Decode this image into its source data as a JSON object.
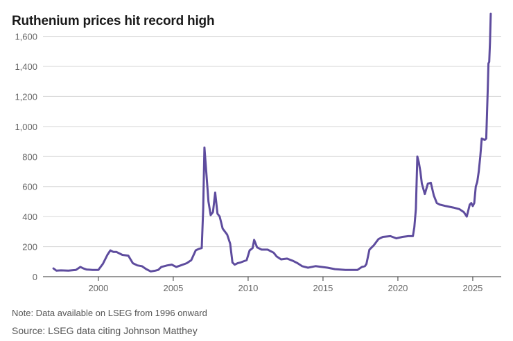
{
  "title": "Ruthenium prices hit record high",
  "note": "Note: Data available on LSEG from 1996 onward",
  "source": "Source: LSEG data citing Johnson Matthey",
  "line_color": "#5e4c9e",
  "chart_data": {
    "type": "line",
    "title": "Ruthenium prices hit record high",
    "xlabel": "",
    "ylabel": "",
    "xlim": [
      1996.3,
      2026.9
    ],
    "ylim": [
      0,
      1750
    ],
    "grid": true,
    "x_ticks": [
      2000,
      2005,
      2010,
      2015,
      2020,
      2025
    ],
    "x_tick_labels": [
      "2000",
      "2005",
      "2010",
      "2015",
      "2020",
      "2025"
    ],
    "y_ticks": [
      0,
      200,
      400,
      600,
      800,
      1000,
      1200,
      1400,
      1600
    ],
    "y_tick_labels": [
      "0",
      "200",
      "400",
      "600",
      "800",
      "1,000",
      "1,200",
      "1,400",
      "1,600"
    ],
    "series": [
      {
        "name": "Ruthenium price",
        "x": [
          1997.0,
          1997.2,
          1997.5,
          1998.0,
          1998.5,
          1998.8,
          1999.0,
          1999.2,
          1999.6,
          2000.0,
          2000.3,
          2000.6,
          2000.8,
          2001.0,
          2001.2,
          2001.6,
          2002.0,
          2002.3,
          2002.6,
          2002.9,
          2003.2,
          2003.5,
          2003.8,
          2004.0,
          2004.2,
          2004.6,
          2004.9,
          2005.2,
          2005.5,
          2005.9,
          2006.2,
          2006.5,
          2006.7,
          2006.9,
          2007.0,
          2007.08,
          2007.2,
          2007.35,
          2007.5,
          2007.65,
          2007.8,
          2007.95,
          2008.1,
          2008.3,
          2008.6,
          2008.8,
          2008.95,
          2009.1,
          2009.3,
          2009.5,
          2009.9,
          2010.1,
          2010.3,
          2010.4,
          2010.6,
          2010.9,
          2011.3,
          2011.7,
          2011.9,
          2012.2,
          2012.6,
          2013.0,
          2013.3,
          2013.6,
          2014.0,
          2014.5,
          2014.9,
          2015.3,
          2015.8,
          2016.5,
          2017.0,
          2017.3,
          2017.6,
          2017.8,
          2017.9,
          2018.1,
          2018.4,
          2018.7,
          2019.0,
          2019.5,
          2019.9,
          2020.3,
          2020.7,
          2021.0,
          2021.1,
          2021.2,
          2021.3,
          2021.4,
          2021.5,
          2021.6,
          2021.8,
          2022.0,
          2022.2,
          2022.4,
          2022.6,
          2022.8,
          2023.2,
          2023.7,
          2024.1,
          2024.4,
          2024.6,
          2024.8,
          2024.9,
          2025.0,
          2025.1,
          2025.2,
          2025.3,
          2025.4,
          2025.5,
          2025.6,
          2025.8,
          2025.9,
          2026.0,
          2026.05,
          2026.1,
          2026.15,
          2026.2
        ],
        "values": [
          55,
          40,
          42,
          40,
          45,
          65,
          55,
          48,
          45,
          45,
          85,
          145,
          175,
          165,
          165,
          145,
          140,
          90,
          75,
          70,
          50,
          35,
          40,
          45,
          65,
          75,
          80,
          65,
          75,
          90,
          110,
          175,
          185,
          190,
          450,
          860,
          700,
          500,
          410,
          430,
          560,
          420,
          400,
          320,
          280,
          220,
          95,
          80,
          90,
          95,
          110,
          175,
          190,
          245,
          195,
          180,
          180,
          160,
          135,
          115,
          120,
          105,
          90,
          70,
          60,
          70,
          65,
          60,
          50,
          45,
          45,
          45,
          65,
          70,
          85,
          180,
          210,
          250,
          265,
          270,
          255,
          265,
          270,
          270,
          330,
          450,
          800,
          760,
          700,
          620,
          550,
          620,
          625,
          540,
          490,
          480,
          470,
          460,
          450,
          430,
          400,
          480,
          490,
          470,
          490,
          600,
          630,
          700,
          800,
          920,
          910,
          920,
          1250,
          1420,
          1430,
          1560,
          1750
        ]
      }
    ]
  }
}
